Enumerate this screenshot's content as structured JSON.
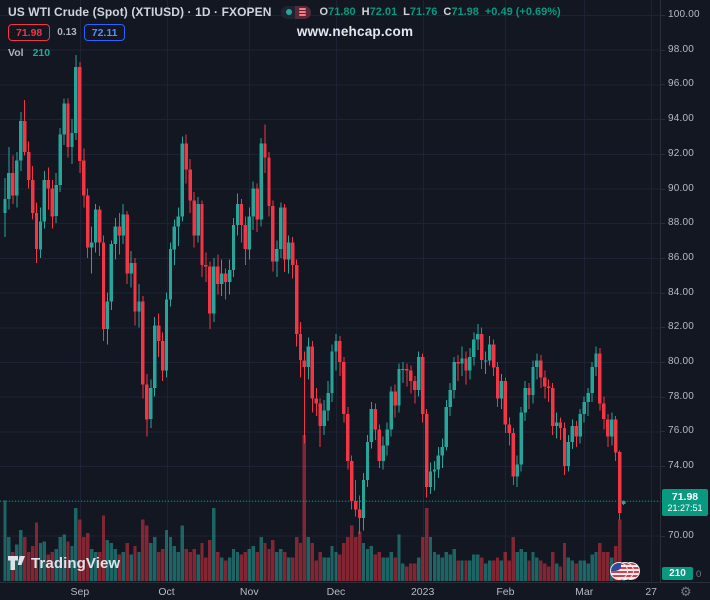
{
  "header": {
    "symbol_title": "US WTI Crude (Spot) (XTIUSD) · 1D · FXOPEN",
    "ohlc": {
      "o_label": "O",
      "o": "71.80",
      "h_label": "H",
      "h": "72.01",
      "l_label": "L",
      "l": "71.76",
      "c_label": "C",
      "c": "71.98",
      "change": "+0.49 (+0.69%)"
    },
    "bid": "71.98",
    "spread": "0.13",
    "ask": "72.11",
    "vol_label": "Vol",
    "vol_value": "210",
    "watermark": "www.nehcap.com"
  },
  "price_axis": {
    "current": {
      "price": "71.98",
      "countdown": "21:27:51"
    },
    "volume_badge": "210",
    "partial_label": "0"
  },
  "footer": {
    "logo_text": "TradingView"
  },
  "icons": {
    "gear": "⚙"
  },
  "colors": {
    "background": "#131722",
    "grid": "#1d2334",
    "axis_border": "#2a2e39",
    "up": "#26a69a",
    "down": "#f23645",
    "accent": "#089981",
    "text": "#b6bac4",
    "bid_red": "#f23645",
    "ask_blue": "#2962ff"
  },
  "chart_data": {
    "type": "candlestick",
    "symbol": "XTIUSD",
    "interval": "1D",
    "provider": "FXOPEN",
    "title": "US WTI Crude (Spot)",
    "last": {
      "open": 71.8,
      "high": 72.01,
      "low": 71.76,
      "close": 71.98,
      "change": 0.49,
      "change_pct": 0.69,
      "volume": 210
    },
    "ylim": [
      70,
      100
    ],
    "grid_step": 2,
    "legend_position": "top-left",
    "grid": true,
    "x_ticks": [
      {
        "i": 19,
        "label": "Sep"
      },
      {
        "i": 41,
        "label": "Oct"
      },
      {
        "i": 62,
        "label": "Nov"
      },
      {
        "i": 84,
        "label": "Dec"
      },
      {
        "i": 106,
        "label": "2023"
      },
      {
        "i": 127,
        "label": "Feb"
      },
      {
        "i": 147,
        "label": "Mar"
      },
      {
        "i": 164,
        "label": "27"
      }
    ],
    "candles_format": [
      "open",
      "high",
      "low",
      "close",
      "relative_volume"
    ],
    "candles": [
      [
        88.6,
        90.6,
        87.2,
        89.4,
        0.55
      ],
      [
        89.4,
        92.4,
        88.8,
        90.9,
        0.3
      ],
      [
        90.9,
        91.9,
        89.1,
        89.6,
        0.2
      ],
      [
        89.6,
        92.1,
        88.9,
        91.6,
        0.25
      ],
      [
        91.6,
        94.4,
        91.0,
        93.9,
        0.35
      ],
      [
        93.9,
        95.1,
        91.9,
        92.1,
        0.3
      ],
      [
        92.1,
        92.7,
        90.0,
        90.5,
        0.2
      ],
      [
        90.5,
        91.3,
        88.2,
        88.6,
        0.24
      ],
      [
        88.6,
        89.2,
        85.7,
        86.5,
        0.4
      ],
      [
        86.5,
        88.9,
        86.0,
        88.1,
        0.26
      ],
      [
        88.1,
        91.0,
        87.7,
        90.5,
        0.27
      ],
      [
        90.5,
        91.2,
        88.8,
        90.0,
        0.18
      ],
      [
        90.0,
        90.5,
        87.7,
        88.4,
        0.2
      ],
      [
        88.4,
        90.9,
        88.0,
        90.2,
        0.22
      ],
      [
        90.2,
        93.5,
        89.8,
        93.1,
        0.3
      ],
      [
        93.1,
        95.2,
        92.5,
        94.9,
        0.32
      ],
      [
        94.9,
        95.2,
        91.8,
        92.4,
        0.27
      ],
      [
        92.4,
        94.0,
        91.4,
        93.2,
        0.24
      ],
      [
        93.2,
        97.7,
        92.8,
        97.0,
        0.5
      ],
      [
        97.0,
        97.3,
        90.9,
        91.6,
        0.42
      ],
      [
        91.6,
        92.3,
        88.9,
        89.6,
        0.3
      ],
      [
        89.6,
        90.0,
        86.0,
        86.6,
        0.33
      ],
      [
        86.6,
        87.8,
        85.1,
        86.9,
        0.22
      ],
      [
        86.9,
        89.1,
        86.3,
        88.8,
        0.2
      ],
      [
        88.8,
        89.0,
        86.1,
        86.9,
        0.2
      ],
      [
        86.9,
        87.3,
        81.2,
        81.9,
        0.45
      ],
      [
        81.9,
        84.0,
        81.0,
        83.5,
        0.28
      ],
      [
        83.5,
        87.0,
        83.0,
        86.8,
        0.26
      ],
      [
        86.8,
        88.3,
        85.9,
        87.8,
        0.22
      ],
      [
        87.8,
        88.6,
        86.2,
        87.3,
        0.18
      ],
      [
        87.3,
        89.1,
        86.8,
        88.5,
        0.2
      ],
      [
        88.5,
        88.7,
        84.5,
        85.1,
        0.26
      ],
      [
        85.1,
        86.4,
        84.3,
        85.7,
        0.18
      ],
      [
        85.7,
        86.0,
        82.1,
        82.9,
        0.24
      ],
      [
        82.9,
        84.5,
        82.0,
        83.5,
        0.2
      ],
      [
        83.5,
        83.8,
        77.9,
        78.7,
        0.42
      ],
      [
        78.7,
        79.3,
        75.7,
        76.7,
        0.38
      ],
      [
        76.7,
        79.0,
        76.2,
        78.5,
        0.26
      ],
      [
        78.5,
        82.6,
        78.0,
        82.1,
        0.3
      ],
      [
        82.1,
        82.8,
        80.3,
        81.2,
        0.2
      ],
      [
        81.2,
        81.7,
        78.9,
        79.5,
        0.22
      ],
      [
        79.5,
        84.0,
        79.1,
        83.6,
        0.35
      ],
      [
        83.6,
        86.9,
        83.2,
        86.5,
        0.3
      ],
      [
        86.5,
        88.2,
        85.6,
        87.8,
        0.24
      ],
      [
        87.8,
        88.9,
        86.7,
        88.4,
        0.2
      ],
      [
        88.4,
        93.0,
        88.1,
        92.6,
        0.38
      ],
      [
        92.6,
        93.1,
        90.3,
        91.1,
        0.22
      ],
      [
        91.1,
        91.7,
        88.6,
        89.3,
        0.2
      ],
      [
        89.3,
        89.8,
        86.6,
        87.3,
        0.22
      ],
      [
        87.3,
        89.5,
        86.9,
        89.1,
        0.18
      ],
      [
        89.1,
        89.3,
        84.9,
        85.6,
        0.26
      ],
      [
        85.6,
        86.3,
        84.6,
        85.5,
        0.16
      ],
      [
        85.5,
        85.8,
        81.9,
        82.8,
        0.28
      ],
      [
        82.8,
        86.0,
        82.3,
        85.5,
        0.5
      ],
      [
        85.5,
        86.2,
        83.9,
        84.5,
        0.2
      ],
      [
        84.5,
        85.9,
        83.8,
        85.1,
        0.16
      ],
      [
        85.1,
        85.4,
        83.6,
        84.6,
        0.14
      ],
      [
        84.6,
        85.9,
        83.9,
        85.3,
        0.16
      ],
      [
        85.3,
        88.3,
        84.9,
        87.9,
        0.22
      ],
      [
        87.9,
        89.7,
        87.3,
        89.1,
        0.2
      ],
      [
        89.1,
        89.4,
        86.9,
        87.9,
        0.18
      ],
      [
        87.9,
        88.4,
        85.6,
        86.5,
        0.2
      ],
      [
        86.5,
        88.9,
        85.9,
        88.4,
        0.22
      ],
      [
        88.4,
        90.4,
        87.6,
        90.0,
        0.24
      ],
      [
        90.0,
        90.3,
        87.5,
        88.2,
        0.2
      ],
      [
        88.2,
        92.9,
        87.8,
        92.6,
        0.3
      ],
      [
        92.6,
        93.7,
        90.9,
        91.8,
        0.26
      ],
      [
        91.8,
        92.1,
        88.4,
        89.0,
        0.22
      ],
      [
        89.0,
        89.3,
        85.2,
        85.8,
        0.28
      ],
      [
        85.8,
        87.0,
        84.9,
        86.5,
        0.2
      ],
      [
        86.5,
        89.2,
        86.0,
        88.9,
        0.22
      ],
      [
        88.9,
        89.1,
        85.2,
        85.9,
        0.2
      ],
      [
        85.9,
        87.3,
        85.1,
        86.9,
        0.16
      ],
      [
        86.9,
        87.2,
        84.8,
        85.6,
        0.16
      ],
      [
        85.6,
        85.9,
        80.9,
        81.6,
        0.3
      ],
      [
        81.6,
        82.3,
        79.1,
        80.1,
        0.26
      ],
      [
        80.1,
        80.6,
        75.3,
        79.7,
        1.0
      ],
      [
        79.7,
        81.4,
        79.0,
        80.9,
        0.3
      ],
      [
        80.9,
        81.2,
        77.1,
        77.9,
        0.26
      ],
      [
        77.9,
        78.5,
        76.9,
        77.6,
        0.14
      ],
      [
        77.6,
        77.9,
        75.1,
        76.3,
        0.2
      ],
      [
        76.3,
        77.8,
        75.8,
        77.2,
        0.16
      ],
      [
        77.2,
        78.9,
        76.6,
        78.2,
        0.16
      ],
      [
        78.2,
        81.0,
        77.7,
        80.6,
        0.24
      ],
      [
        80.6,
        81.6,
        79.5,
        81.2,
        0.2
      ],
      [
        81.2,
        81.5,
        79.2,
        80.0,
        0.18
      ],
      [
        80.0,
        80.3,
        76.5,
        77.0,
        0.26
      ],
      [
        77.0,
        77.4,
        73.8,
        74.3,
        0.3
      ],
      [
        74.3,
        74.6,
        71.5,
        72.0,
        0.38
      ],
      [
        72.0,
        73.2,
        71.1,
        71.5,
        0.3
      ],
      [
        71.5,
        72.3,
        70.1,
        71.0,
        0.34
      ],
      [
        71.0,
        73.6,
        70.3,
        73.2,
        0.26
      ],
      [
        73.2,
        75.8,
        72.8,
        75.4,
        0.22
      ],
      [
        75.4,
        77.7,
        75.0,
        77.3,
        0.24
      ],
      [
        77.3,
        77.6,
        75.5,
        76.1,
        0.18
      ],
      [
        76.1,
        76.4,
        73.9,
        74.3,
        0.2
      ],
      [
        74.3,
        75.7,
        73.8,
        75.2,
        0.16
      ],
      [
        75.2,
        76.5,
        74.6,
        76.1,
        0.16
      ],
      [
        76.1,
        78.6,
        75.7,
        78.3,
        0.2
      ],
      [
        78.3,
        78.7,
        76.8,
        77.5,
        0.16
      ],
      [
        77.5,
        79.9,
        77.1,
        79.6,
        0.32
      ],
      [
        79.6,
        80.0,
        78.8,
        79.6,
        0.12
      ],
      [
        79.6,
        79.9,
        78.6,
        79.5,
        0.1
      ],
      [
        79.5,
        79.8,
        78.2,
        78.9,
        0.12
      ],
      [
        78.9,
        79.2,
        77.6,
        78.4,
        0.12
      ],
      [
        78.4,
        80.6,
        78.0,
        80.3,
        0.16
      ],
      [
        80.3,
        80.5,
        76.5,
        77.0,
        0.3
      ],
      [
        77.0,
        77.3,
        72.2,
        72.8,
        0.5
      ],
      [
        72.8,
        74.2,
        72.4,
        73.7,
        0.3
      ],
      [
        73.7,
        74.3,
        72.6,
        73.8,
        0.2
      ],
      [
        73.8,
        75.1,
        73.3,
        74.6,
        0.18
      ],
      [
        74.6,
        75.6,
        73.9,
        75.1,
        0.16
      ],
      [
        75.1,
        77.8,
        74.9,
        77.4,
        0.2
      ],
      [
        77.4,
        78.8,
        76.9,
        78.4,
        0.18
      ],
      [
        78.4,
        80.3,
        77.9,
        80.0,
        0.22
      ],
      [
        80.0,
        80.4,
        78.9,
        79.9,
        0.14
      ],
      [
        79.9,
        80.9,
        79.2,
        80.2,
        0.14
      ],
      [
        80.2,
        80.6,
        78.7,
        79.5,
        0.14
      ],
      [
        79.5,
        80.8,
        79.0,
        80.3,
        0.14
      ],
      [
        80.3,
        81.7,
        79.8,
        81.3,
        0.18
      ],
      [
        81.3,
        82.2,
        80.7,
        81.6,
        0.18
      ],
      [
        81.6,
        82.0,
        79.6,
        80.1,
        0.16
      ],
      [
        80.1,
        80.6,
        79.3,
        80.1,
        0.12
      ],
      [
        80.1,
        81.5,
        79.8,
        81.0,
        0.14
      ],
      [
        81.0,
        81.3,
        79.2,
        79.7,
        0.14
      ],
      [
        79.7,
        80.0,
        77.4,
        77.9,
        0.16
      ],
      [
        77.9,
        79.3,
        77.3,
        78.9,
        0.14
      ],
      [
        78.9,
        79.1,
        75.9,
        76.4,
        0.2
      ],
      [
        76.4,
        76.8,
        75.2,
        75.9,
        0.14
      ],
      [
        75.9,
        76.2,
        72.9,
        73.4,
        0.3
      ],
      [
        73.4,
        74.6,
        72.8,
        74.1,
        0.2
      ],
      [
        74.1,
        77.4,
        73.7,
        77.1,
        0.22
      ],
      [
        77.1,
        78.9,
        76.6,
        78.5,
        0.2
      ],
      [
        78.5,
        78.8,
        77.3,
        78.1,
        0.14
      ],
      [
        78.1,
        80.1,
        77.6,
        79.7,
        0.2
      ],
      [
        79.7,
        80.5,
        79.0,
        80.1,
        0.16
      ],
      [
        80.1,
        80.4,
        78.5,
        79.1,
        0.14
      ],
      [
        79.1,
        79.5,
        77.9,
        78.6,
        0.12
      ],
      [
        78.6,
        79.0,
        77.7,
        78.5,
        0.1
      ],
      [
        78.5,
        78.8,
        75.8,
        76.3,
        0.2
      ],
      [
        76.3,
        77.1,
        75.6,
        76.5,
        0.12
      ],
      [
        76.5,
        76.8,
        75.5,
        76.2,
        0.1
      ],
      [
        76.2,
        76.5,
        73.5,
        74.0,
        0.26
      ],
      [
        74.0,
        75.8,
        73.7,
        75.4,
        0.16
      ],
      [
        75.4,
        76.7,
        75.0,
        76.3,
        0.14
      ],
      [
        76.3,
        76.6,
        75.1,
        75.7,
        0.12
      ],
      [
        75.7,
        77.3,
        75.3,
        77.0,
        0.14
      ],
      [
        77.0,
        78.0,
        76.5,
        77.7,
        0.14
      ],
      [
        77.7,
        78.5,
        76.9,
        78.2,
        0.12
      ],
      [
        78.2,
        80.0,
        77.7,
        79.7,
        0.18
      ],
      [
        79.7,
        80.9,
        79.2,
        80.5,
        0.2
      ],
      [
        80.5,
        80.8,
        77.2,
        77.6,
        0.26
      ],
      [
        77.6,
        78.0,
        76.1,
        76.7,
        0.2
      ],
      [
        76.7,
        77.0,
        75.1,
        75.7,
        0.2
      ],
      [
        75.7,
        77.1,
        75.2,
        76.7,
        0.16
      ],
      [
        76.7,
        76.9,
        74.3,
        74.8,
        0.24
      ],
      [
        74.8,
        74.9,
        70.9,
        71.3,
        0.42
      ],
      [
        71.8,
        72.01,
        71.76,
        71.98,
        0.06
      ]
    ]
  }
}
